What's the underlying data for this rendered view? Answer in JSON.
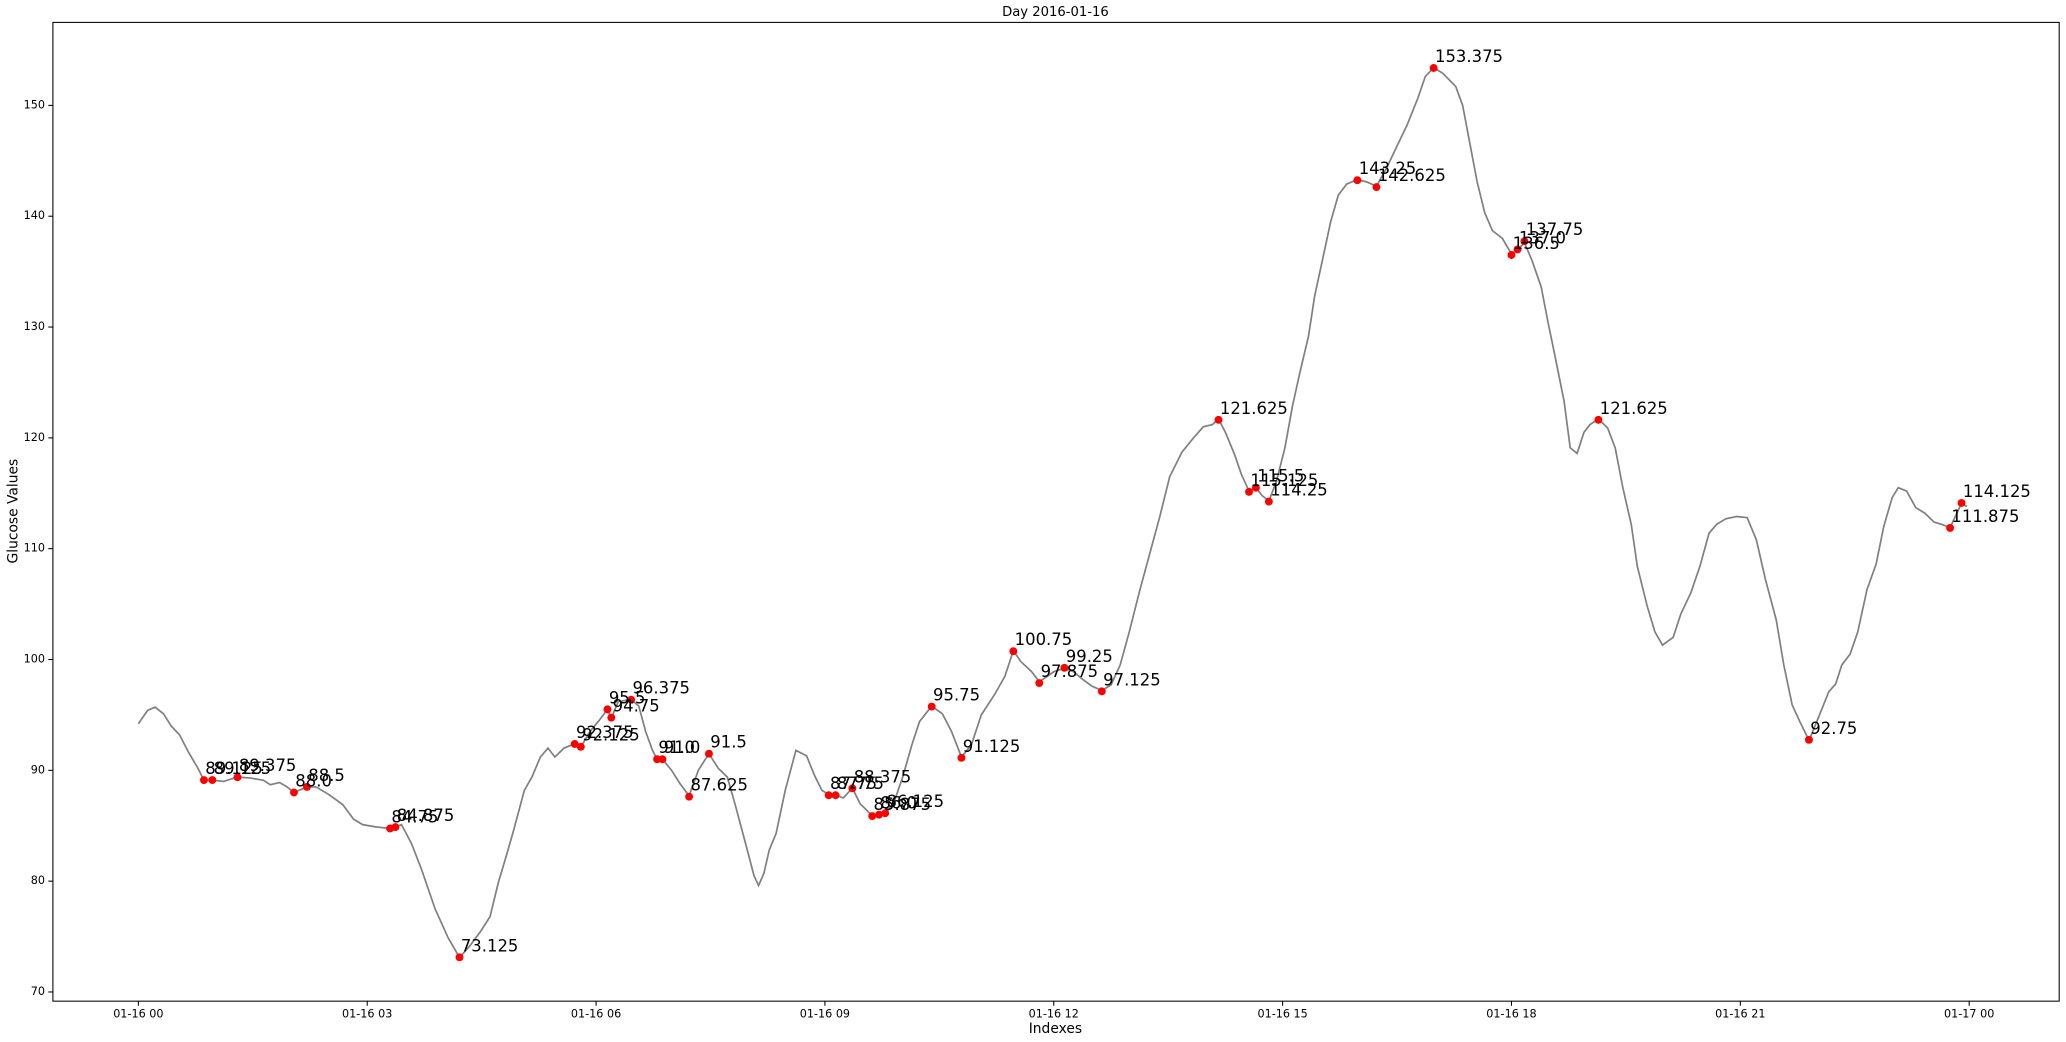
{
  "chart_data": {
    "type": "line",
    "title": "Day 2016-01-16",
    "x_label": "Indexes",
    "y_label": "Glucose Values",
    "x": [
      0,
      0.12,
      0.22,
      0.33,
      0.43,
      0.54,
      0.66,
      0.78,
      0.86,
      0.97,
      1.12,
      1.3,
      1.47,
      1.64,
      1.73,
      1.85,
      1.95,
      2.04,
      2.21,
      2.33,
      2.5,
      2.68,
      2.82,
      2.94,
      3.11,
      3.3,
      3.37,
      3.45,
      3.58,
      3.71,
      3.89,
      4.06,
      4.21,
      4.35,
      4.49,
      4.61,
      4.72,
      4.82,
      4.92,
      5.06,
      5.16,
      5.27,
      5.37,
      5.46,
      5.58,
      5.72,
      5.8,
      5.92,
      6.04,
      6.15,
      6.2,
      6.29,
      6.46,
      6.56,
      6.65,
      6.74,
      6.8,
      6.87,
      6.99,
      7.1,
      7.22,
      7.34,
      7.48,
      7.6,
      7.72,
      7.82,
      7.96,
      8.07,
      8.13,
      8.2,
      8.27,
      8.36,
      8.48,
      8.62,
      8.76,
      8.86,
      8.96,
      9.05,
      9.14,
      9.24,
      9.36,
      9.46,
      9.62,
      9.71,
      9.79,
      9.9,
      10.02,
      10.14,
      10.24,
      10.4,
      10.54,
      10.66,
      10.79,
      10.92,
      11.05,
      11.23,
      11.36,
      11.47,
      11.57,
      11.71,
      11.81,
      11.92,
      12,
      12.14,
      12.26,
      12.38,
      12.5,
      12.63,
      12.75,
      12.87,
      12.99,
      13.13,
      13.26,
      13.39,
      13.52,
      13.68,
      13.82,
      13.96,
      14.08,
      14.16,
      14.25,
      14.37,
      14.46,
      14.56,
      14.65,
      14.73,
      14.82,
      14.92,
      15.03,
      15.13,
      15.23,
      15.34,
      15.42,
      15.53,
      15.63,
      15.73,
      15.84,
      15.98,
      16.1,
      16.23,
      16.36,
      16.49,
      16.63,
      16.77,
      16.87,
      16.98,
      17.1,
      17.27,
      17.36,
      17.44,
      17.55,
      17.65,
      17.75,
      17.88,
      18,
      18.08,
      18.17,
      18.27,
      18.39,
      18.48,
      18.57,
      18.69,
      18.77,
      18.86,
      18.95,
      19.03,
      19.14,
      19.26,
      19.36,
      19.46,
      19.57,
      19.65,
      19.78,
      19.88,
      19.98,
      20.12,
      20.22,
      20.35,
      20.47,
      20.59,
      20.69,
      20.81,
      20.95,
      21.09,
      21.21,
      21.33,
      21.47,
      21.57,
      21.68,
      21.78,
      21.9,
      22.02,
      22.16,
      22.25,
      22.33,
      22.44,
      22.54,
      22.66,
      22.78,
      22.88,
      22.99,
      23.07,
      23.18,
      23.3,
      23.42,
      23.54,
      23.64,
      23.75,
      23.9,
      23.97
    ],
    "values": [
      94.2,
      95.4,
      95.7,
      95.1,
      94.0,
      93.2,
      91.6,
      90.2,
      89.1,
      89.1,
      89.0,
      89.4,
      89.3,
      89.1,
      88.7,
      88.9,
      88.5,
      88.0,
      88.5,
      88.5,
      87.8,
      86.9,
      85.6,
      85.1,
      84.9,
      84.75,
      84.9,
      85.1,
      83.4,
      81.1,
      77.5,
      74.9,
      73.1,
      74.2,
      75.5,
      76.8,
      79.9,
      82.2,
      84.6,
      88.2,
      89.4,
      91.2,
      92.0,
      91.2,
      92.0,
      92.4,
      92.1,
      93.5,
      94.5,
      95.5,
      94.7,
      96.2,
      96.4,
      95.8,
      93.5,
      91.8,
      91.0,
      91.0,
      90.0,
      88.8,
      87.7,
      90.0,
      91.5,
      90.2,
      89.4,
      87.0,
      83.4,
      80.5,
      79.6,
      80.7,
      82.8,
      84.3,
      88.2,
      91.8,
      91.3,
      89.6,
      88.2,
      87.8,
      87.8,
      87.5,
      88.4,
      87.0,
      85.9,
      86.0,
      86.1,
      87.0,
      89.4,
      92.3,
      94.4,
      95.8,
      95.1,
      93.5,
      91.2,
      92.3,
      95.0,
      96.9,
      98.5,
      100.8,
      99.8,
      98.9,
      98.0,
      98.5,
      98.9,
      99.2,
      98.9,
      98.2,
      97.6,
      97.2,
      97.7,
      99.5,
      102.5,
      106.3,
      109.6,
      112.9,
      116.5,
      118.7,
      119.9,
      121.0,
      121.2,
      121.7,
      120.5,
      118.5,
      116.7,
      115.2,
      115.5,
      114.8,
      114.3,
      116.1,
      119.1,
      122.9,
      126.0,
      129.2,
      132.8,
      136.3,
      139.5,
      141.9,
      142.9,
      143.3,
      143.1,
      142.7,
      144.3,
      146.2,
      148.2,
      150.6,
      152.6,
      153.4,
      152.9,
      151.7,
      150.0,
      147.1,
      143.1,
      140.3,
      138.7,
      138.0,
      136.6,
      137.0,
      137.6,
      136.0,
      133.6,
      130.4,
      127.4,
      123.3,
      119.1,
      118.6,
      120.5,
      121.2,
      121.7,
      120.9,
      119.1,
      115.5,
      112.2,
      108.4,
      104.8,
      102.5,
      101.3,
      102.0,
      104.1,
      106.0,
      108.4,
      111.4,
      112.2,
      112.7,
      112.9,
      112.8,
      110.8,
      107.2,
      103.6,
      99.5,
      95.9,
      94.4,
      92.7,
      94.7,
      97.1,
      97.8,
      99.5,
      100.5,
      102.5,
      106.3,
      108.6,
      112.0,
      114.6,
      115.5,
      115.2,
      113.7,
      113.2,
      112.4,
      112.2,
      111.9,
      114.1,
      113.8
    ],
    "color": "#808080",
    "points": {
      "color": "#ff0000",
      "x": [
        0.86,
        0.97,
        1.3,
        2.04,
        2.21,
        3.3,
        3.37,
        4.21,
        5.72,
        5.8,
        6.15,
        6.2,
        6.46,
        6.8,
        6.87,
        7.22,
        7.48,
        9.05,
        9.14,
        9.36,
        9.62,
        9.71,
        9.79,
        10.4,
        10.79,
        11.47,
        11.81,
        12.14,
        12.63,
        14.16,
        14.56,
        14.65,
        14.82,
        15.98,
        16.23,
        16.98,
        18,
        18.08,
        18.17,
        19.14,
        21.9,
        23.75,
        23.9
      ],
      "values": [
        89.125,
        89.125,
        89.375,
        88,
        88.5,
        84.75,
        84.875,
        73.125,
        92.375,
        92.125,
        95.5,
        94.75,
        96.375,
        91,
        91,
        87.625,
        91.5,
        87.75,
        87.75,
        88.375,
        85.875,
        86,
        86.125,
        95.75,
        91.125,
        100.75,
        97.875,
        99.25,
        97.125,
        121.625,
        115.125,
        115.5,
        114.25,
        143.25,
        142.625,
        153.375,
        136.5,
        137,
        137.75,
        121.625,
        92.75,
        111.875,
        114.125
      ],
      "value_labels": [
        "89.125",
        "89.125",
        "89.375",
        "88.0",
        "88.5",
        "84.75",
        "84.875",
        "73.125",
        "92.375",
        "92.125",
        "95.5",
        "94.75",
        "96.375",
        "91.0",
        "91.0",
        "87.625",
        "91.5",
        "87.75",
        "87.75",
        "88.375",
        "85.875",
        "86.0",
        "86.125",
        "95.75",
        "91.125",
        "100.75",
        "97.875",
        "99.25",
        "97.125",
        "121.625",
        "115.125",
        "115.5",
        "114.25",
        "143.25",
        "142.625",
        "153.375",
        "136.5",
        "137.0",
        "137.75",
        "121.625",
        "92.75",
        "111.875",
        "114.125"
      ]
    },
    "xlim": [
      -1.12,
      25.18
    ],
    "ylim": [
      69.17,
      157.49
    ],
    "xticks": [
      {
        "value": 0,
        "label": "01-16 00"
      },
      {
        "value": 3,
        "label": "01-16 03"
      },
      {
        "value": 6,
        "label": "01-16 06"
      },
      {
        "value": 9,
        "label": "01-16 09"
      },
      {
        "value": 12,
        "label": "01-16 12"
      },
      {
        "value": 15,
        "label": "01-16 15"
      },
      {
        "value": 18,
        "label": "01-16 18"
      },
      {
        "value": 21,
        "label": "01-16 21"
      },
      {
        "value": 24,
        "label": "01-17 00"
      }
    ],
    "yticks": [
      70,
      80,
      90,
      100,
      110,
      120,
      130,
      140,
      150
    ],
    "grid": false
  }
}
